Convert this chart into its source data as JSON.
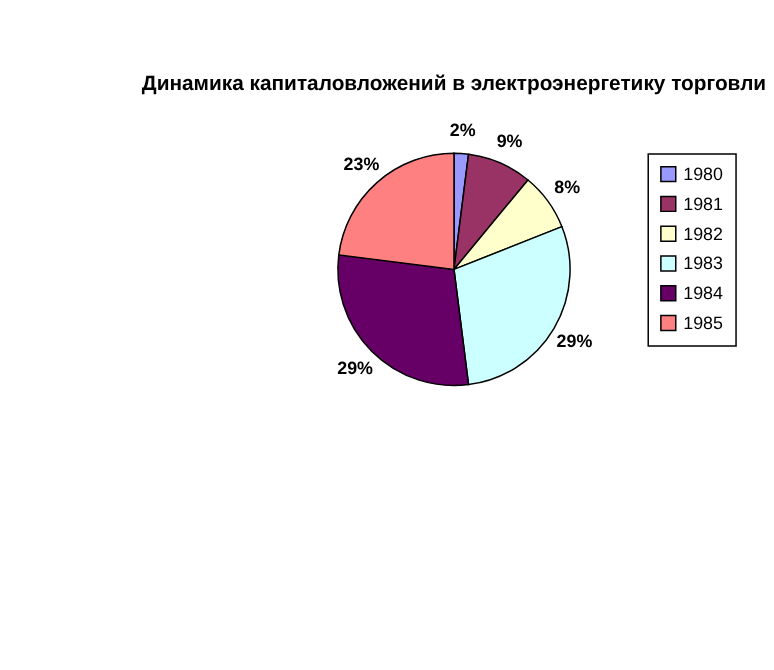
{
  "chart_data": {
    "type": "pie",
    "title": "Динамика капиталовложений в\nэлектроэнергетику торговли",
    "categories": [
      "1980",
      "1981",
      "1982",
      "1983",
      "1984",
      "1985"
    ],
    "values": [
      2,
      9,
      8,
      29,
      29,
      23
    ],
    "value_labels": [
      "2%",
      "9%",
      "8%",
      "29%",
      "29%",
      "23%"
    ],
    "colors": [
      "#9999ff",
      "#993366",
      "#ffffcc",
      "#ccffff",
      "#660066",
      "#ff8080"
    ],
    "legend": "right"
  }
}
